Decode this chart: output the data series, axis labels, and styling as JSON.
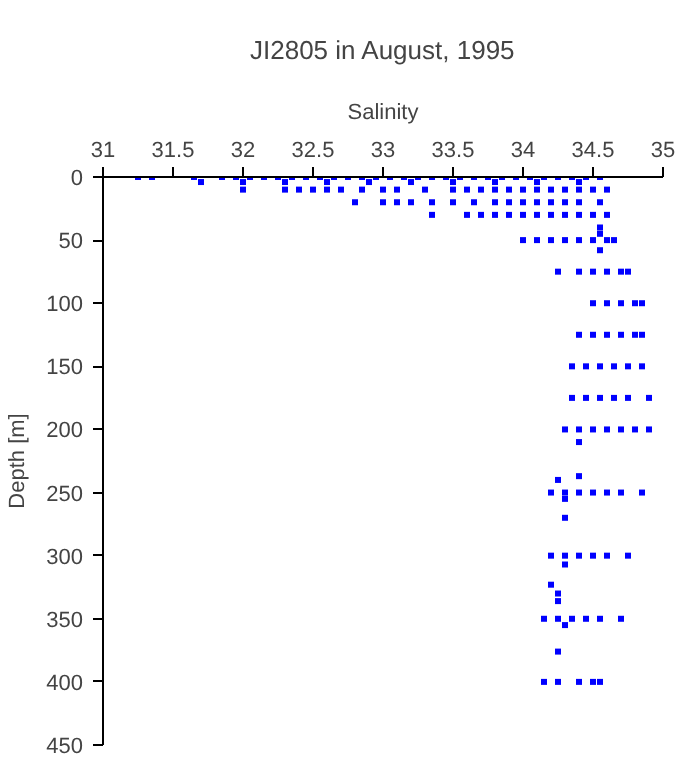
{
  "chart_data": {
    "type": "scatter",
    "title": "JI2805 in August, 1995",
    "xlabel": "Salinity",
    "ylabel": "Depth [m]",
    "xlim": [
      31,
      35
    ],
    "xticks": [
      31,
      31.5,
      32,
      32.5,
      33,
      33.5,
      34,
      34.5,
      35
    ],
    "ylim": [
      450,
      0
    ],
    "yticks": [
      0,
      50,
      100,
      150,
      200,
      250,
      300,
      350,
      400,
      450
    ],
    "grid": false,
    "marker": "square",
    "series": [
      {
        "color": "#0000ff",
        "x": [
          31.25,
          31.35,
          31.65,
          31.85,
          31.95,
          32.05,
          32.15,
          32.25,
          32.35,
          32.45,
          32.55,
          32.65,
          32.75,
          32.85,
          32.95,
          33.05,
          33.15,
          33.25,
          33.35,
          33.45,
          33.55,
          33.65,
          33.75,
          33.85,
          33.95,
          34.05,
          34.15,
          34.25,
          34.35,
          34.45,
          34.55
        ],
        "values": [
          0,
          0,
          0,
          0,
          0,
          0,
          0,
          0,
          0,
          0,
          0,
          0,
          0,
          0,
          0,
          0,
          0,
          0,
          0,
          0,
          0,
          0,
          0,
          0,
          0,
          0,
          0,
          0,
          0,
          0,
          0
        ]
      },
      {
        "color": "#0000ff",
        "x": [
          31.7,
          32.0,
          32.3,
          32.6,
          32.9,
          33.2,
          33.5,
          33.8,
          34.1,
          34.4
        ],
        "values": [
          4,
          4,
          4,
          4,
          4,
          4,
          4,
          4,
          4,
          4
        ]
      },
      {
        "color": "#0000ff",
        "x": [
          32.0,
          32.3,
          32.4,
          32.5,
          32.6,
          32.7,
          32.85,
          33.0,
          33.1,
          33.3,
          33.5,
          33.6,
          33.7,
          33.8,
          33.9,
          34.0,
          34.1,
          34.2,
          34.3,
          34.4,
          34.5,
          34.6
        ],
        "values": [
          10,
          10,
          10,
          10,
          10,
          10,
          10,
          10,
          10,
          10,
          10,
          10,
          10,
          10,
          10,
          10,
          10,
          10,
          10,
          10,
          10,
          10
        ]
      },
      {
        "color": "#0000ff",
        "x": [
          32.8,
          33.0,
          33.1,
          33.2,
          33.35,
          33.5,
          33.65,
          33.8,
          33.9,
          34.0,
          34.1,
          34.2,
          34.3,
          34.4,
          34.55
        ],
        "values": [
          20,
          20,
          20,
          20,
          20,
          20,
          20,
          20,
          20,
          20,
          20,
          20,
          20,
          20,
          20
        ]
      },
      {
        "color": "#0000ff",
        "x": [
          33.35,
          33.6,
          33.7,
          33.8,
          33.9,
          34.0,
          34.1,
          34.2,
          34.3,
          34.4,
          34.5,
          34.6
        ],
        "values": [
          30,
          30,
          30,
          30,
          30,
          30,
          30,
          30,
          30,
          30,
          30,
          30
        ]
      },
      {
        "color": "#0000ff",
        "x": [
          34.55,
          34.55,
          34.55
        ],
        "values": [
          40,
          45,
          58
        ]
      },
      {
        "color": "#0000ff",
        "x": [
          34.0,
          34.1,
          34.2,
          34.3,
          34.4,
          34.5,
          34.6,
          34.65
        ],
        "values": [
          50,
          50,
          50,
          50,
          50,
          50,
          50,
          50
        ]
      },
      {
        "color": "#0000ff",
        "x": [
          34.25,
          34.4,
          34.5,
          34.6,
          34.7,
          34.75
        ],
        "values": [
          75,
          75,
          75,
          75,
          75,
          75
        ]
      },
      {
        "color": "#0000ff",
        "x": [
          34.5,
          34.6,
          34.7,
          34.8,
          34.85
        ],
        "values": [
          100,
          100,
          100,
          100,
          100
        ]
      },
      {
        "color": "#0000ff",
        "x": [
          34.4,
          34.5,
          34.6,
          34.7,
          34.8,
          34.85
        ],
        "values": [
          125,
          125,
          125,
          125,
          125,
          125
        ]
      },
      {
        "color": "#0000ff",
        "x": [
          34.35,
          34.45,
          34.55,
          34.65,
          34.75,
          34.85
        ],
        "values": [
          150,
          150,
          150,
          150,
          150,
          150
        ]
      },
      {
        "color": "#0000ff",
        "x": [
          34.35,
          34.45,
          34.55,
          34.65,
          34.75,
          34.9
        ],
        "values": [
          175,
          175,
          175,
          175,
          175,
          175
        ]
      },
      {
        "color": "#0000ff",
        "x": [
          34.3,
          34.4,
          34.5,
          34.6,
          34.7,
          34.8,
          34.9,
          34.4
        ],
        "values": [
          200,
          200,
          200,
          200,
          200,
          200,
          200,
          210
        ]
      },
      {
        "color": "#0000ff",
        "x": [
          34.4,
          34.25,
          34.2,
          34.3,
          34.4,
          34.5,
          34.6,
          34.7,
          34.85,
          34.3,
          34.3
        ],
        "values": [
          237,
          240,
          250,
          250,
          250,
          250,
          250,
          250,
          250,
          255,
          270
        ]
      },
      {
        "color": "#0000ff",
        "x": [
          34.2,
          34.3,
          34.4,
          34.5,
          34.6,
          34.75,
          34.3,
          34.2,
          34.25,
          34.25
        ],
        "values": [
          300,
          300,
          300,
          300,
          300,
          300,
          307,
          323,
          330,
          336
        ]
      },
      {
        "color": "#0000ff",
        "x": [
          34.15,
          34.25,
          34.35,
          34.45,
          34.55,
          34.7,
          34.3,
          34.25
        ],
        "values": [
          350,
          350,
          350,
          350,
          350,
          350,
          355,
          376
        ]
      },
      {
        "color": "#0000ff",
        "x": [
          34.15,
          34.25,
          34.4,
          34.5,
          34.55
        ],
        "values": [
          400,
          400,
          400,
          400,
          400
        ]
      }
    ]
  }
}
